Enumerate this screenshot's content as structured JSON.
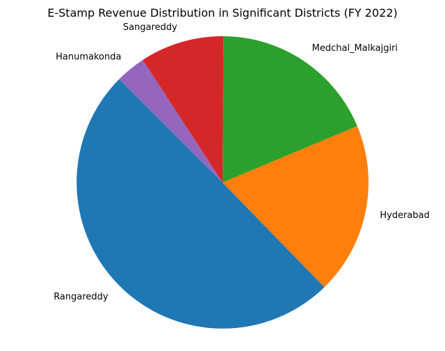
{
  "chart_data": {
    "type": "pie",
    "title": "E-Stamp Revenue Distribution in Significant Districts (FY 2022)",
    "start_angle_deg": 135,
    "direction": "counterclockwise",
    "slices": [
      {
        "label": "Rangareddy",
        "value": 49.8,
        "color": "#1f77b4"
      },
      {
        "label": "Hyderabad",
        "value": 19.0,
        "color": "#ff7f0e"
      },
      {
        "label": "Medchal_Malkajgiri",
        "value": 18.6,
        "color": "#2ca02c"
      },
      {
        "label": "Sangareddy",
        "value": 9.3,
        "color": "#d62728"
      },
      {
        "label": "Hanumakonda",
        "value": 3.3,
        "color": "#9467bd"
      }
    ]
  }
}
